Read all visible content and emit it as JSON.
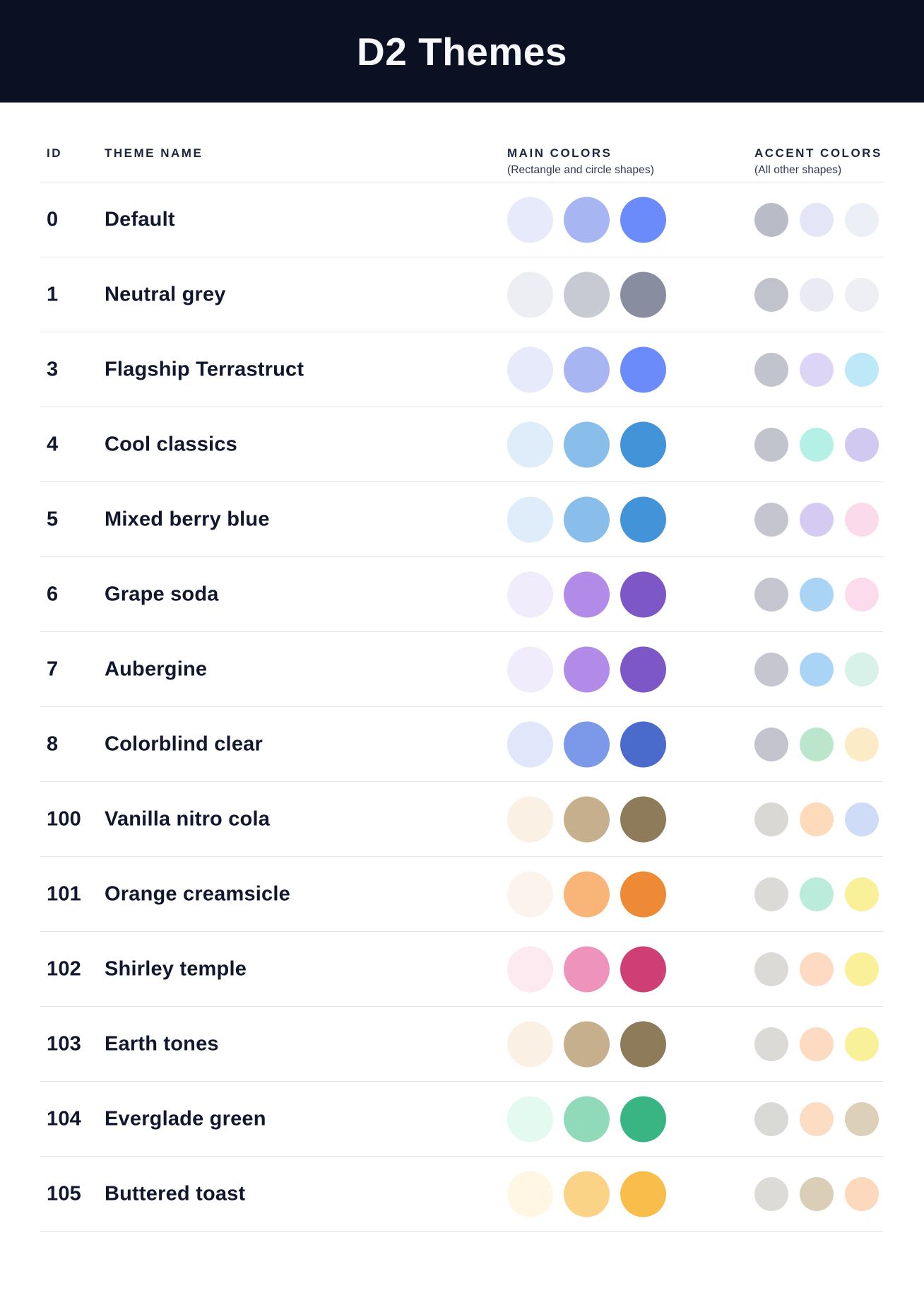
{
  "header": {
    "title": "D2 Themes"
  },
  "theme": {
    "header_bg": "#0B1023",
    "divider": "#E3E5EE",
    "row_text": "#10172E",
    "head_text": "#1D2440",
    "sub_text": "#2E374E",
    "page_bg": "#FFFFFF"
  },
  "table": {
    "columns": {
      "id_label": "ID",
      "name_label": "THEME NAME",
      "main_label": "MAIN COLORS",
      "main_sublabel": "(Rectangle and circle shapes)",
      "accent_label": "ACCENT COLORS",
      "accent_sublabel": "(All other shapes)"
    },
    "rows": [
      {
        "id": "0",
        "name": "Default",
        "main": [
          "#E7EAFB",
          "#A7B5F2",
          "#6C8BFA"
        ],
        "accent": [
          "#B9BBC7",
          "#E4E6F8",
          "#EDEFF6"
        ]
      },
      {
        "id": "1",
        "name": "Neutral grey",
        "main": [
          "#ECEEF4",
          "#C8CAD3",
          "#898DA0"
        ],
        "accent": [
          "#C0C2CC",
          "#E9EAF4",
          "#EDEFF5"
        ]
      },
      {
        "id": "3",
        "name": "Flagship Terrastruct",
        "main": [
          "#E7EAFB",
          "#A7B5F2",
          "#6C8BFA"
        ],
        "accent": [
          "#C1C3CD",
          "#DDD5F6",
          "#BCE8F7"
        ]
      },
      {
        "id": "4",
        "name": "Cool classics",
        "main": [
          "#DEEDF9",
          "#88BEE9",
          "#4293D8"
        ],
        "accent": [
          "#C1C3CD",
          "#B5F0E6",
          "#D2C9F1"
        ]
      },
      {
        "id": "5",
        "name": "Mixed berry blue",
        "main": [
          "#DEEDF9",
          "#88BEE9",
          "#4293D8"
        ],
        "accent": [
          "#C4C5CE",
          "#D5CAF2",
          "#FBDBEB"
        ]
      },
      {
        "id": "6",
        "name": "Grape soda",
        "main": [
          "#F1ECFB",
          "#B28BE9",
          "#7C57C5"
        ],
        "accent": [
          "#C5C6CF",
          "#A9D4F6",
          "#FCDBEC"
        ]
      },
      {
        "id": "7",
        "name": "Aubergine",
        "main": [
          "#F1ECFB",
          "#B28BE9",
          "#7C57C5"
        ],
        "accent": [
          "#C5C6CF",
          "#A9D4F6",
          "#D8F2E9"
        ]
      },
      {
        "id": "8",
        "name": "Colorblind clear",
        "main": [
          "#E0E7FB",
          "#7C98E9",
          "#4A6BCB"
        ],
        "accent": [
          "#C3C4CE",
          "#BBE6CC",
          "#FCEBC7"
        ]
      },
      {
        "id": "100",
        "name": "Vanilla nitro cola",
        "main": [
          "#FAF0E3",
          "#C5AF8C",
          "#8D7B59"
        ],
        "accent": [
          "#D9D8D4",
          "#FDDABA",
          "#CFDCF7"
        ]
      },
      {
        "id": "101",
        "name": "Orange creamsicle",
        "main": [
          "#FDF3ED",
          "#F9B577",
          "#EE8935"
        ],
        "accent": [
          "#DBDAD6",
          "#BBEBDB",
          "#F9F099"
        ]
      },
      {
        "id": "102",
        "name": "Shirley temple",
        "main": [
          "#FDEAF1",
          "#ED93BC",
          "#CD3F75"
        ],
        "accent": [
          "#DBDAD6",
          "#FDDAC1",
          "#F9F099"
        ]
      },
      {
        "id": "103",
        "name": "Earth tones",
        "main": [
          "#FAF0E3",
          "#C5AF8C",
          "#8D7B59"
        ],
        "accent": [
          "#DBDAD6",
          "#FDDAC2",
          "#F9F09A"
        ]
      },
      {
        "id": "104",
        "name": "Everglade green",
        "main": [
          "#E3FAF1",
          "#90DAB9",
          "#38B583"
        ],
        "accent": [
          "#D9D9D6",
          "#FCDCC2",
          "#DDD0B8"
        ]
      },
      {
        "id": "105",
        "name": "Buttered toast",
        "main": [
          "#FFF7E3",
          "#FBD386",
          "#F8BD4A"
        ],
        "accent": [
          "#DCDBD8",
          "#DBCEB7",
          "#FCD8BC"
        ]
      }
    ]
  }
}
